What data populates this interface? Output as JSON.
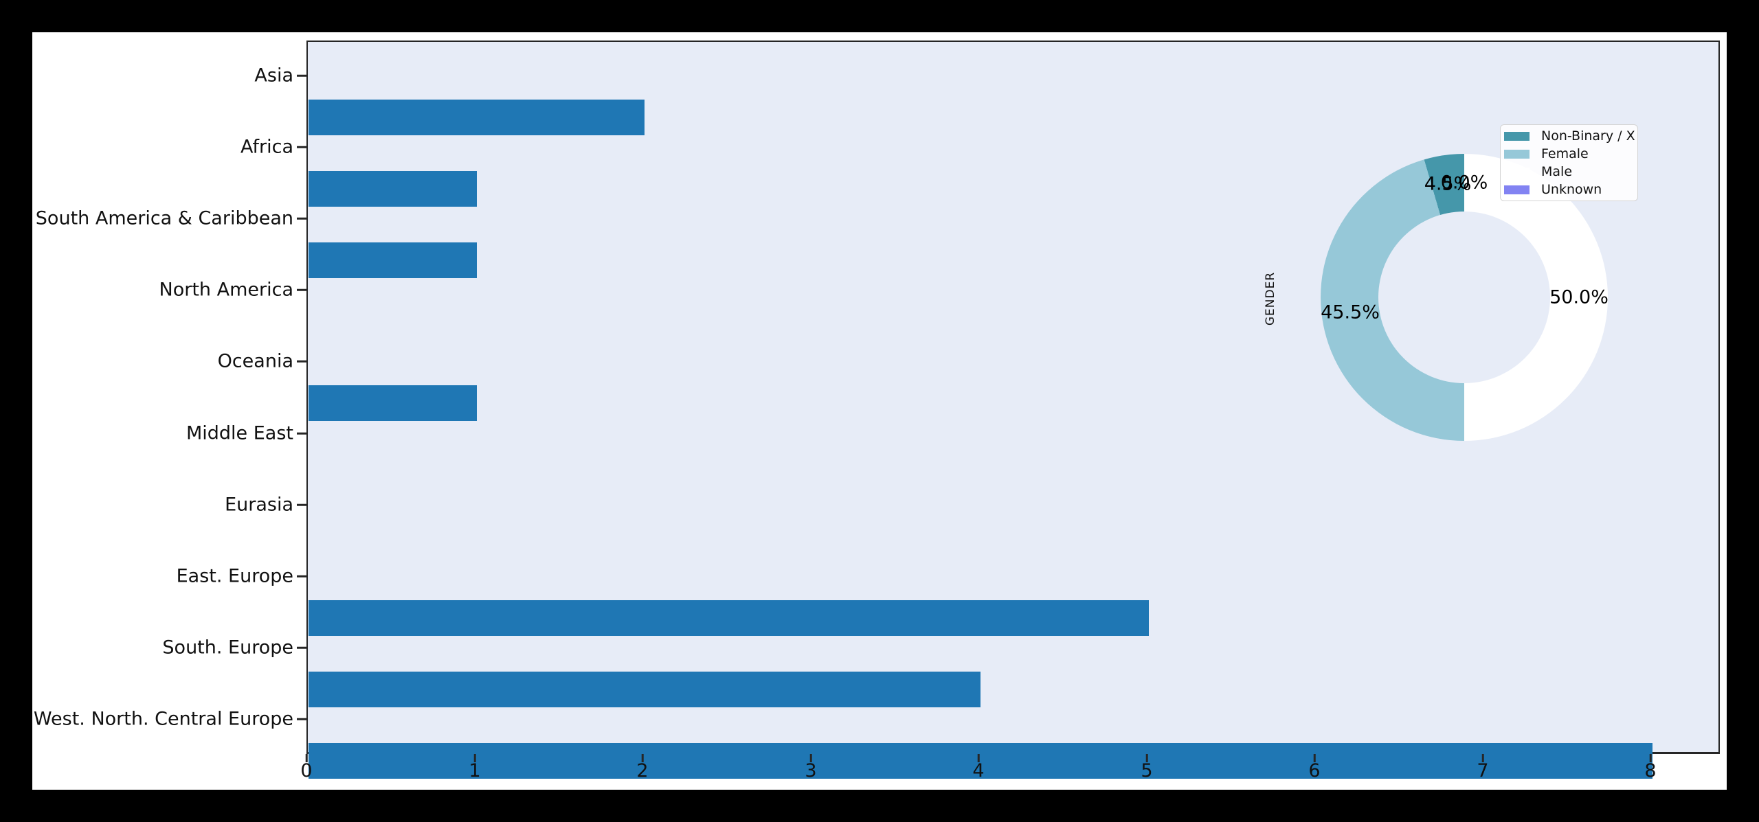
{
  "colors": {
    "page_bg": "#000000",
    "figure_bg": "#ffffff",
    "plot_bg": "#e7ecf7",
    "bar": "#1f77b4",
    "spine": "#262626",
    "pie_nonbinary": "#4597aa",
    "pie_female": "#96c8d8",
    "pie_male": "#ffffff",
    "pie_unknown": "#8283f2"
  },
  "chart_data": [
    {
      "type": "bar",
      "orientation": "horizontal",
      "title": "",
      "xlabel": "",
      "ylabel": "",
      "categories": [
        "Asia",
        "Africa",
        "South America & Caribbean",
        "North America",
        "Oceania",
        "Middle East",
        "Eurasia",
        "East. Europe",
        "South. Europe",
        "West. North. Central Europe"
      ],
      "values": [
        2,
        1,
        1,
        0,
        1,
        0,
        0,
        5,
        4,
        8
      ],
      "xtick_labels": [
        "0",
        "1",
        "2",
        "3",
        "4",
        "5",
        "6",
        "7",
        "8"
      ],
      "xticks": [
        0,
        1,
        2,
        3,
        4,
        5,
        6,
        7,
        8
      ],
      "xlim": [
        0,
        8.4
      ],
      "grid": false,
      "bar_color": "#1f77b4",
      "plot_bg": "#e7ecf7"
    },
    {
      "type": "pie",
      "donut": true,
      "ylabel": "GENDER",
      "labels": [
        "Non-Binary / X",
        "Female",
        "Male",
        "Unknown"
      ],
      "values": [
        4.5,
        45.5,
        50.0,
        0.0
      ],
      "pct_labels": [
        "4.5%",
        "45.5%",
        "50.0%",
        "0.0%"
      ],
      "colors": [
        "#4597aa",
        "#96c8d8",
        "#ffffff",
        "#8283f2"
      ],
      "start_angle_deg": 90,
      "direction": "counterclockwise",
      "hole_ratio": 0.6,
      "legend_position": "upper right"
    }
  ],
  "legend": {
    "items": [
      {
        "label": "Non-Binary / X",
        "color": "#4597aa"
      },
      {
        "label": "Female",
        "color": "#96c8d8"
      },
      {
        "label": "Male",
        "color": "#ffffff"
      },
      {
        "label": "Unknown",
        "color": "#8283f2"
      }
    ]
  },
  "pie": {
    "ylabel": "GENDER"
  }
}
